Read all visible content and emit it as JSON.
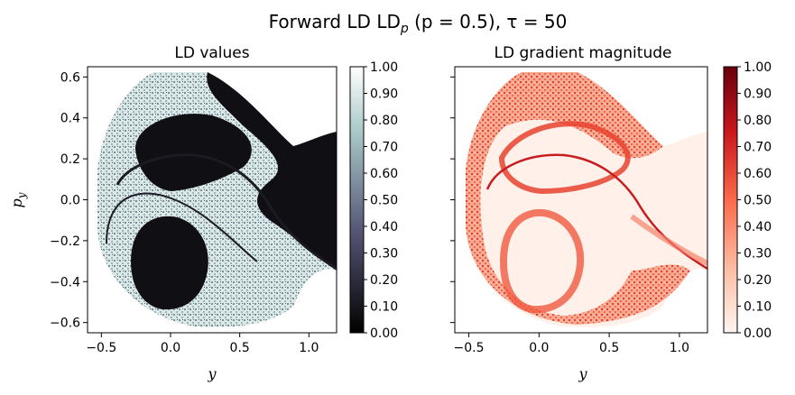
{
  "title": {
    "prefix": "Forward LD LD",
    "sub": "p",
    "params": "(p = 0.5), τ = 50"
  },
  "chart_data": [
    {
      "type": "heatmap",
      "title": "LD values",
      "xlabel": "y",
      "ylabel": "p",
      "ylabel_sub": "y",
      "xlim": [
        -0.6,
        1.2
      ],
      "ylim": [
        -0.65,
        0.65
      ],
      "xticks": [
        -0.5,
        0.0,
        0.5,
        1.0
      ],
      "xtick_labels": [
        "−0.5",
        "0.0",
        "0.5",
        "1.0"
      ],
      "yticks": [
        0.6,
        0.4,
        0.2,
        0.0,
        -0.2,
        -0.4,
        -0.6
      ],
      "ytick_labels": [
        "0.6",
        "0.4",
        "0.2",
        "0.0",
        "−0.2",
        "−0.4",
        "−0.6"
      ],
      "colormap": "bone",
      "colorbar": {
        "range": [
          0,
          1
        ],
        "ticks": [
          1.0,
          0.9,
          0.8,
          0.7,
          0.6,
          0.5,
          0.4,
          0.3,
          0.2,
          0.1,
          0.0
        ],
        "tick_labels": [
          "1.00",
          "0.90",
          "0.80",
          "0.70",
          "0.60",
          "0.50",
          "0.40",
          "0.30",
          "0.20",
          "0.10",
          "0.00"
        ],
        "colors": [
          "#000000",
          "#545474",
          "#a7c7c7",
          "#ffffff"
        ]
      }
    },
    {
      "type": "heatmap",
      "title": "LD gradient magnitude",
      "xlabel": "y",
      "xlim": [
        -0.6,
        1.2
      ],
      "ylim": [
        -0.65,
        0.65
      ],
      "xticks": [
        -0.5,
        0.0,
        0.5,
        1.0
      ],
      "xtick_labels": [
        "−0.5",
        "0.0",
        "0.5",
        "1.0"
      ],
      "yticks": [
        0.6,
        0.4,
        0.2,
        0.0,
        -0.2,
        -0.4,
        -0.6
      ],
      "colormap": "Reds",
      "colorbar": {
        "range": [
          0,
          1
        ],
        "ticks": [
          1.0,
          0.9,
          0.8,
          0.7,
          0.6,
          0.5,
          0.4,
          0.3,
          0.2,
          0.1,
          0.0
        ],
        "tick_labels": [
          "1.00",
          "0.90",
          "0.80",
          "0.70",
          "0.60",
          "0.50",
          "0.40",
          "0.30",
          "0.20",
          "0.10",
          "0.00"
        ],
        "colors": [
          "#fff5f0",
          "#fcbba1",
          "#fb6a4a",
          "#cb181d",
          "#67000d"
        ]
      }
    }
  ]
}
